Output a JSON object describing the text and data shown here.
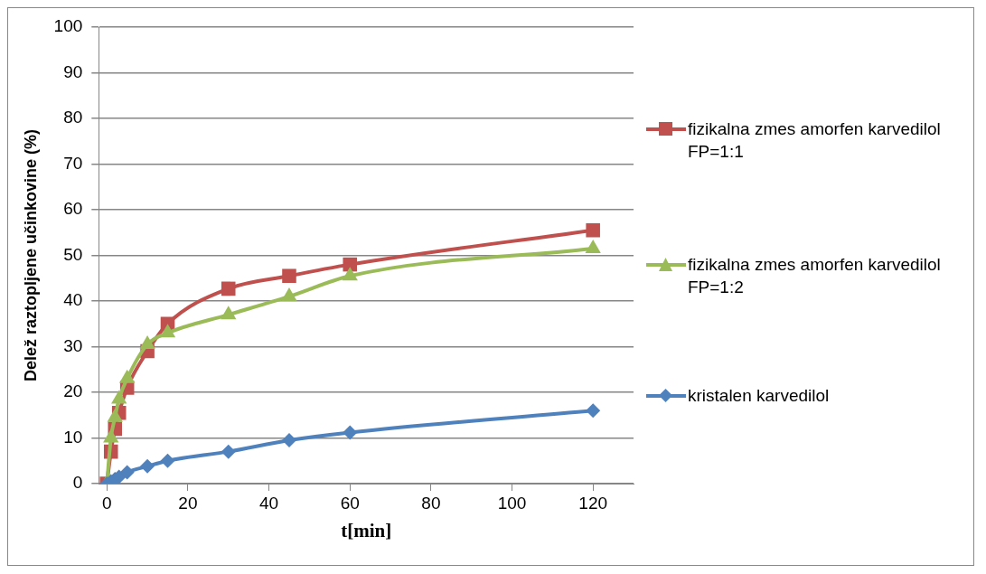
{
  "chart_data": {
    "type": "line",
    "xlabel": "t[min]",
    "ylabel": "Delež raztopljene učinkovine (%)",
    "x": [
      0,
      1,
      2,
      3,
      5,
      10,
      15,
      30,
      45,
      60,
      120
    ],
    "series": [
      {
        "name": "fizikalna zmes amorfen karvedilol FP=1:1",
        "color": "#c0504d",
        "marker": "square",
        "values": [
          0,
          7,
          12,
          15.5,
          21,
          29,
          35,
          42.7,
          45.5,
          48,
          55.5
        ]
      },
      {
        "name": "fizikalna zmes amorfen karvedilol FP=1:2",
        "color": "#9bbb59",
        "marker": "triangle",
        "values": [
          0,
          10,
          14.5,
          18.5,
          23,
          30.5,
          33,
          37,
          41,
          45.5,
          51.5
        ]
      },
      {
        "name": "kristalen karvedilol",
        "color": "#4f81bd",
        "marker": "diamond",
        "values": [
          0,
          0.5,
          1,
          1.5,
          2.5,
          3.8,
          5,
          7,
          9.5,
          11.2,
          16
        ]
      }
    ],
    "xlim": [
      -2,
      130
    ],
    "xticks": [
      0,
      20,
      40,
      60,
      80,
      100,
      120
    ],
    "ylim": [
      0,
      100
    ],
    "yticks": [
      0,
      10,
      20,
      30,
      40,
      50,
      60,
      70,
      80,
      90,
      100
    ],
    "grid": "y",
    "legend": "right"
  }
}
